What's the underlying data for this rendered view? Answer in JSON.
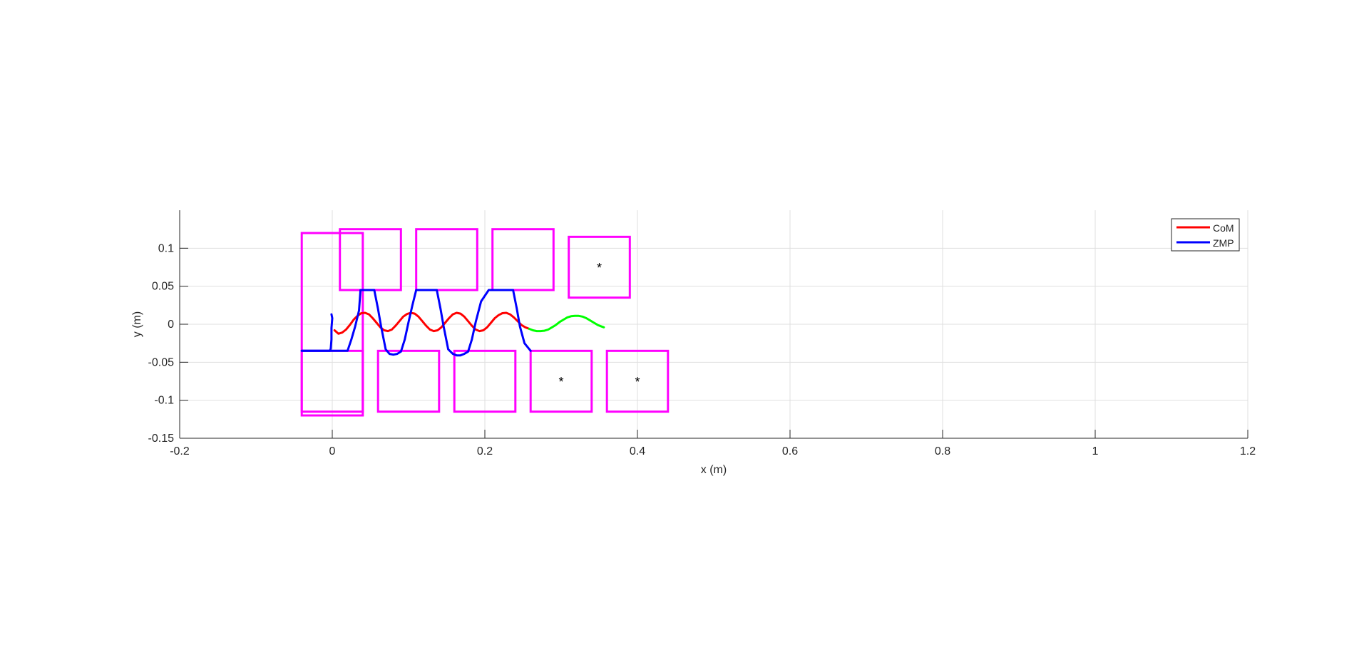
{
  "chart_data": {
    "type": "line",
    "title": "",
    "xlabel": "x (m)",
    "ylabel": "y (m)",
    "xlim": [
      -0.2,
      1.2
    ],
    "ylim": [
      -0.15,
      0.15
    ],
    "xticks": [
      -0.2,
      0,
      0.2,
      0.4,
      0.6,
      0.8,
      1,
      1.2
    ],
    "xtick_labels": [
      "-0.2",
      "0",
      "0.2",
      "0.4",
      "0.6",
      "0.8",
      "1",
      "1.2"
    ],
    "yticks": [
      -0.15,
      -0.1,
      -0.05,
      0,
      0.05,
      0.1
    ],
    "ytick_labels": [
      "-0.15",
      "-0.1",
      "-0.05",
      "0",
      "0.05",
      "0.1"
    ],
    "grid": true,
    "legend": {
      "placement": "top-right",
      "entries": [
        "CoM",
        "ZMP"
      ]
    },
    "colors": {
      "com": "#ff0000",
      "com_preview": "#00ff00",
      "zmp": "#0000ff",
      "footprint": "#ff00ff",
      "marker": "#000000"
    },
    "series": [
      {
        "name": "CoM",
        "x": [
          0.003,
          0.008,
          0.013,
          0.018,
          0.023,
          0.028,
          0.033,
          0.038,
          0.043,
          0.048,
          0.053,
          0.058,
          0.063,
          0.068,
          0.073,
          0.078,
          0.083,
          0.088,
          0.093,
          0.098,
          0.103,
          0.108,
          0.113,
          0.118,
          0.123,
          0.128,
          0.133,
          0.138,
          0.143,
          0.148,
          0.153,
          0.158,
          0.163,
          0.168,
          0.173,
          0.178,
          0.183,
          0.188,
          0.193,
          0.198,
          0.203,
          0.208,
          0.213,
          0.218,
          0.223,
          0.228,
          0.233,
          0.238,
          0.243,
          0.248,
          0.253,
          0.258
        ],
        "y": [
          -0.008,
          -0.0125,
          -0.011,
          -0.007,
          -0.001,
          0.006,
          0.011,
          0.0145,
          0.015,
          0.013,
          0.008,
          0.002,
          -0.004,
          -0.008,
          -0.009,
          -0.007,
          -0.002,
          0.004,
          0.01,
          0.0135,
          0.015,
          0.014,
          0.01,
          0.004,
          -0.002,
          -0.007,
          -0.009,
          -0.008,
          -0.004,
          0.002,
          0.008,
          0.013,
          0.015,
          0.014,
          0.01,
          0.004,
          -0.002,
          -0.007,
          -0.009,
          -0.008,
          -0.004,
          0.002,
          0.008,
          0.012,
          0.0145,
          0.015,
          0.013,
          0.009,
          0.004,
          -0.001,
          -0.004,
          -0.006
        ]
      },
      {
        "name": "",
        "role": "CoM preview",
        "x": [
          0.258,
          0.263,
          0.268,
          0.273,
          0.278,
          0.283,
          0.288,
          0.293,
          0.298,
          0.303,
          0.308,
          0.313,
          0.318,
          0.323,
          0.328,
          0.333,
          0.338,
          0.343,
          0.348,
          0.353,
          0.356
        ],
        "y": [
          -0.006,
          -0.008,
          -0.009,
          -0.009,
          -0.0085,
          -0.007,
          -0.004,
          -0.001,
          0.003,
          0.006,
          0.009,
          0.0105,
          0.011,
          0.011,
          0.01,
          0.008,
          0.005,
          0.002,
          -0.001,
          -0.003,
          -0.004
        ]
      },
      {
        "name": "ZMP",
        "x": [
          -0.04,
          0.02,
          0.025,
          0.03,
          0.035,
          0.037,
          0.055,
          0.06,
          0.064,
          0.07,
          0.075,
          0.08,
          0.085,
          0.09,
          0.095,
          0.1,
          0.105,
          0.11,
          0.137,
          0.142,
          0.146,
          0.152,
          0.158,
          0.163,
          0.168,
          0.173,
          0.178,
          0.183,
          0.188,
          0.195,
          0.205,
          0.21,
          0.237,
          0.242,
          0.246,
          0.252,
          0.26
        ],
        "y": [
          -0.035,
          -0.035,
          -0.02,
          -0.003,
          0.018,
          0.045,
          0.045,
          0.02,
          -0.003,
          -0.033,
          -0.039,
          -0.04,
          -0.039,
          -0.036,
          -0.02,
          0.003,
          0.025,
          0.045,
          0.045,
          0.02,
          -0.003,
          -0.033,
          -0.039,
          -0.041,
          -0.041,
          -0.039,
          -0.036,
          -0.02,
          0.003,
          0.03,
          0.045,
          0.045,
          0.045,
          0.02,
          -0.003,
          -0.025,
          -0.035
        ]
      },
      {
        "name": "",
        "role": "ZMP initial spike",
        "x": [
          -0.04,
          -0.003,
          -0.002,
          -0.001,
          -0.001,
          0.0,
          -0.001
        ],
        "y": [
          -0.035,
          -0.035,
          -0.032,
          -0.02,
          -0.005,
          0.008,
          0.013
        ]
      }
    ],
    "footprints": [
      {
        "x0": -0.04,
        "x1": 0.04,
        "y0": -0.12,
        "y1": 0.12
      },
      {
        "x0": -0.04,
        "x1": 0.04,
        "y0": -0.115,
        "y1": -0.035
      },
      {
        "x0": 0.01,
        "x1": 0.09,
        "y0": 0.045,
        "y1": 0.125
      },
      {
        "x0": 0.06,
        "x1": 0.14,
        "y0": -0.115,
        "y1": -0.035
      },
      {
        "x0": 0.11,
        "x1": 0.19,
        "y0": 0.045,
        "y1": 0.125
      },
      {
        "x0": 0.16,
        "x1": 0.24,
        "y0": -0.115,
        "y1": -0.035
      },
      {
        "x0": 0.21,
        "x1": 0.29,
        "y0": 0.045,
        "y1": 0.125
      },
      {
        "x0": 0.26,
        "x1": 0.34,
        "y0": -0.115,
        "y1": -0.035
      },
      {
        "x0": 0.31,
        "x1": 0.39,
        "y0": 0.035,
        "y1": 0.115
      },
      {
        "x0": 0.36,
        "x1": 0.44,
        "y0": -0.115,
        "y1": -0.035
      }
    ],
    "markers": [
      {
        "x": 0.35,
        "y": 0.075,
        "symbol": "*"
      },
      {
        "x": 0.3,
        "y": -0.075,
        "symbol": "*"
      },
      {
        "x": 0.4,
        "y": -0.075,
        "symbol": "*"
      }
    ]
  }
}
